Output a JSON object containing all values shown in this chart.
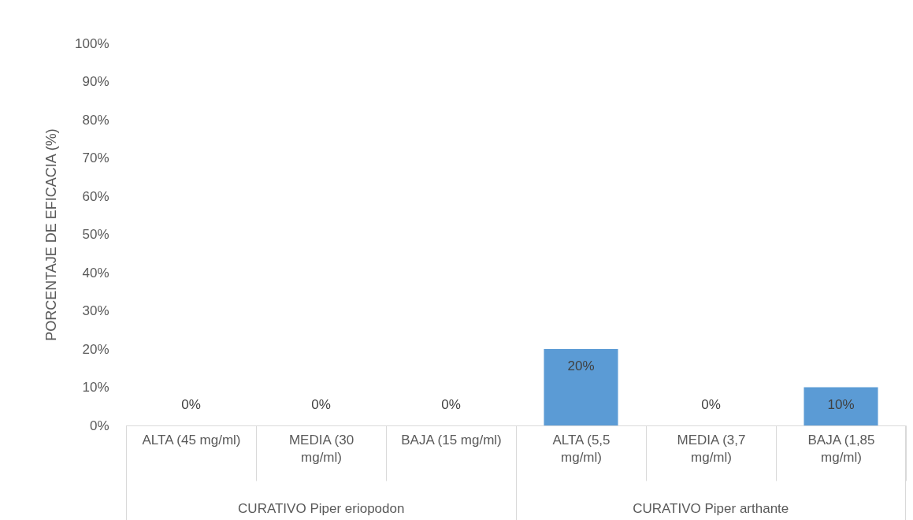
{
  "chart_data": {
    "type": "bar",
    "ylabel": "PORCENTAJE DE EFICACIA (%)",
    "categories": [
      "ALTA (45 mg/ml)",
      "MEDIA (30 mg/ml)",
      "BAJA (15 mg/ml)",
      "ALTA (5,5 mg/ml)",
      "MEDIA (3,7 mg/ml)",
      "BAJA (1,85 mg/ml)"
    ],
    "values": [
      0,
      0,
      0,
      20,
      0,
      10
    ],
    "value_labels": [
      "0%",
      "0%",
      "0%",
      "20%",
      "0%",
      "10%"
    ],
    "color": "#5b9bd5",
    "ylim": [
      0,
      100
    ],
    "yticks": [
      {
        "value": 0,
        "label": "0%"
      },
      {
        "value": 10,
        "label": "10%"
      },
      {
        "value": 20,
        "label": "20%"
      },
      {
        "value": 30,
        "label": "30%"
      },
      {
        "value": 40,
        "label": "40%"
      },
      {
        "value": 50,
        "label": "50%"
      },
      {
        "value": 60,
        "label": "60%"
      },
      {
        "value": 70,
        "label": "70%"
      },
      {
        "value": 80,
        "label": "80%"
      },
      {
        "value": 90,
        "label": "90%"
      },
      {
        "value": 100,
        "label": "100%"
      }
    ],
    "annotations": [
      "CURATIVO Piper eriopodon",
      "CURATIVO Piper arthante"
    ],
    "grid": false
  }
}
